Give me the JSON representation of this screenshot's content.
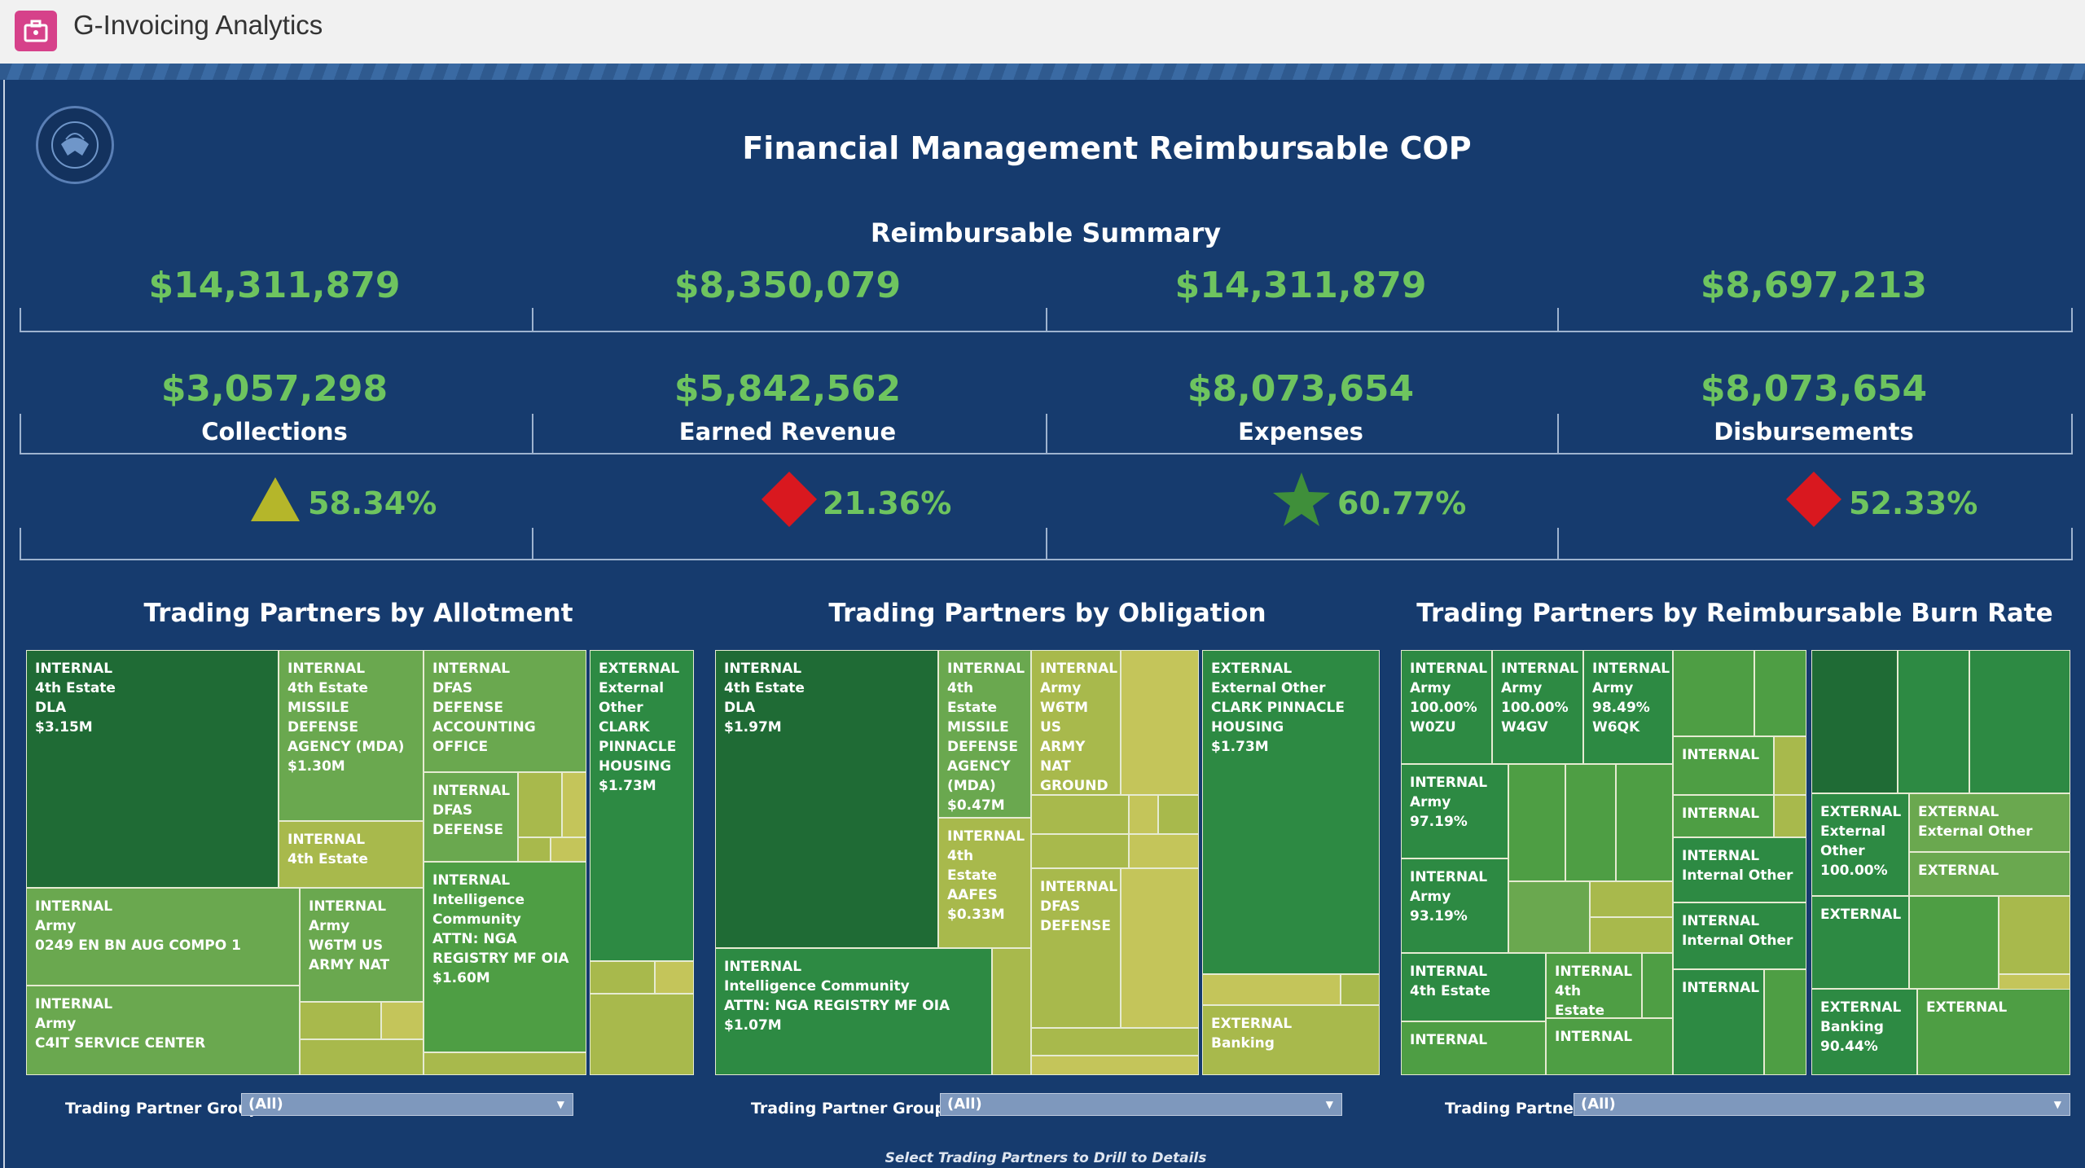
{
  "app": {
    "title": "G-Invoicing Analytics"
  },
  "dashboard": {
    "title": "Financial Management Reimbursable COP",
    "subtitle": "Reimbursable Summary",
    "top_values": [
      "$14,311,879",
      "$8,350,079",
      "$14,311,879",
      "$8,697,213"
    ],
    "metrics": [
      {
        "value": "$3,057,298",
        "label": "Collections",
        "pct": "58.34%",
        "indicator": "triangle-up",
        "indicator_color": "#b5b62a"
      },
      {
        "value": "$5,842,562",
        "label": "Earned Revenue",
        "pct": "21.36%",
        "indicator": "diamond",
        "indicator_color": "#d9181f"
      },
      {
        "value": "$8,073,654",
        "label": "Expenses",
        "pct": "60.77%",
        "indicator": "star",
        "indicator_color": "#3f8f3a"
      },
      {
        "value": "$8,073,654",
        "label": "Disbursements",
        "pct": "52.33%",
        "indicator": "diamond",
        "indicator_color": "#d9181f"
      }
    ],
    "colors": {
      "background": "#163b6e",
      "value_green": "#6ec45f"
    }
  },
  "treemaps": [
    {
      "title": "Trading Partners by Allotment",
      "filter_label": "Trading Partner Group",
      "filter_value": "(All)",
      "cells": [
        "INTERNAL\n4th Estate\nDLA\n$3.15M",
        "INTERNAL\n4th Estate\nMISSILE DEFENSE\nAGENCY (MDA)\n$1.30M",
        "INTERNAL\nDFAS\nDEFENSE\nACCOUNTING\nOFFICE",
        "EXTERNAL\nExternal\nOther\nCLARK\nPINNACLE\nHOUSING\n$1.73M",
        "INTERNAL\nDFAS\nDEFENSE",
        "INTERNAL\n4th Estate",
        "INTERNAL\nIntelligence\nCommunity\nATTN: NGA\nREGISTRY MF OIA\n$1.60M",
        "INTERNAL\nArmy\n0249 EN BN    AUG COMPO 1",
        "INTERNAL\nArmy\nW6TM US\nARMY NAT",
        "INTERNAL\nArmy\nC4IT SERVICE CENTER"
      ]
    },
    {
      "title": "Trading Partners by Obligation",
      "filter_label": "Trading Partner Group 2",
      "filter_value": "(All)",
      "cells": [
        "INTERNAL\n4th Estate\nDLA\n$1.97M",
        "INTERNAL\n4th Estate\nMISSILE\nDEFENSE\nAGENCY\n(MDA)\n$0.47M",
        "INTERNAL\nArmy\nW6TM US\nARMY\nNAT\nGROUND",
        "EXTERNAL\nExternal Other\nCLARK PINNACLE\nHOUSING\n$1.73M",
        "INTERNAL\n4th Estate\nAAFES\n$0.33M",
        "INTERNAL\nDFAS\nDEFENSE",
        "INTERNAL\nIntelligence Community\nATTN: NGA REGISTRY MF OIA\n$1.07M",
        "EXTERNAL\nBanking"
      ]
    },
    {
      "title": "Trading Partners by Reimbursable Burn Rate",
      "filter_label": "Trading Partner",
      "filter_value": "(All)",
      "cells": [
        "INTERNAL\nArmy\n100.00%\nW0ZU",
        "INTERNAL\nArmy\n100.00%\nW4GV",
        "INTERNAL\nArmy\n98.49%\nW6QK",
        "INTERNAL\nArmy\n97.19%",
        "INTERNAL",
        "INTERNAL",
        "INTERNAL\nInternal Other",
        "INTERNAL\nInternal Other",
        "INTERNAL\nArmy\n93.19%",
        "INTERNAL\n4th Estate",
        "INTERNAL\n4th Estate",
        "INTERNAL",
        "INTERNAL",
        "INTERNAL",
        "EXTERNAL\nExternal\nOther\n100.00%",
        "EXTERNAL\nExternal Other",
        "EXTERNAL",
        "EXTERNAL",
        "EXTERNAL\nBanking\n90.44%",
        "EXTERNAL"
      ]
    }
  ],
  "footer": "Select Trading Partners to Drill to Details"
}
